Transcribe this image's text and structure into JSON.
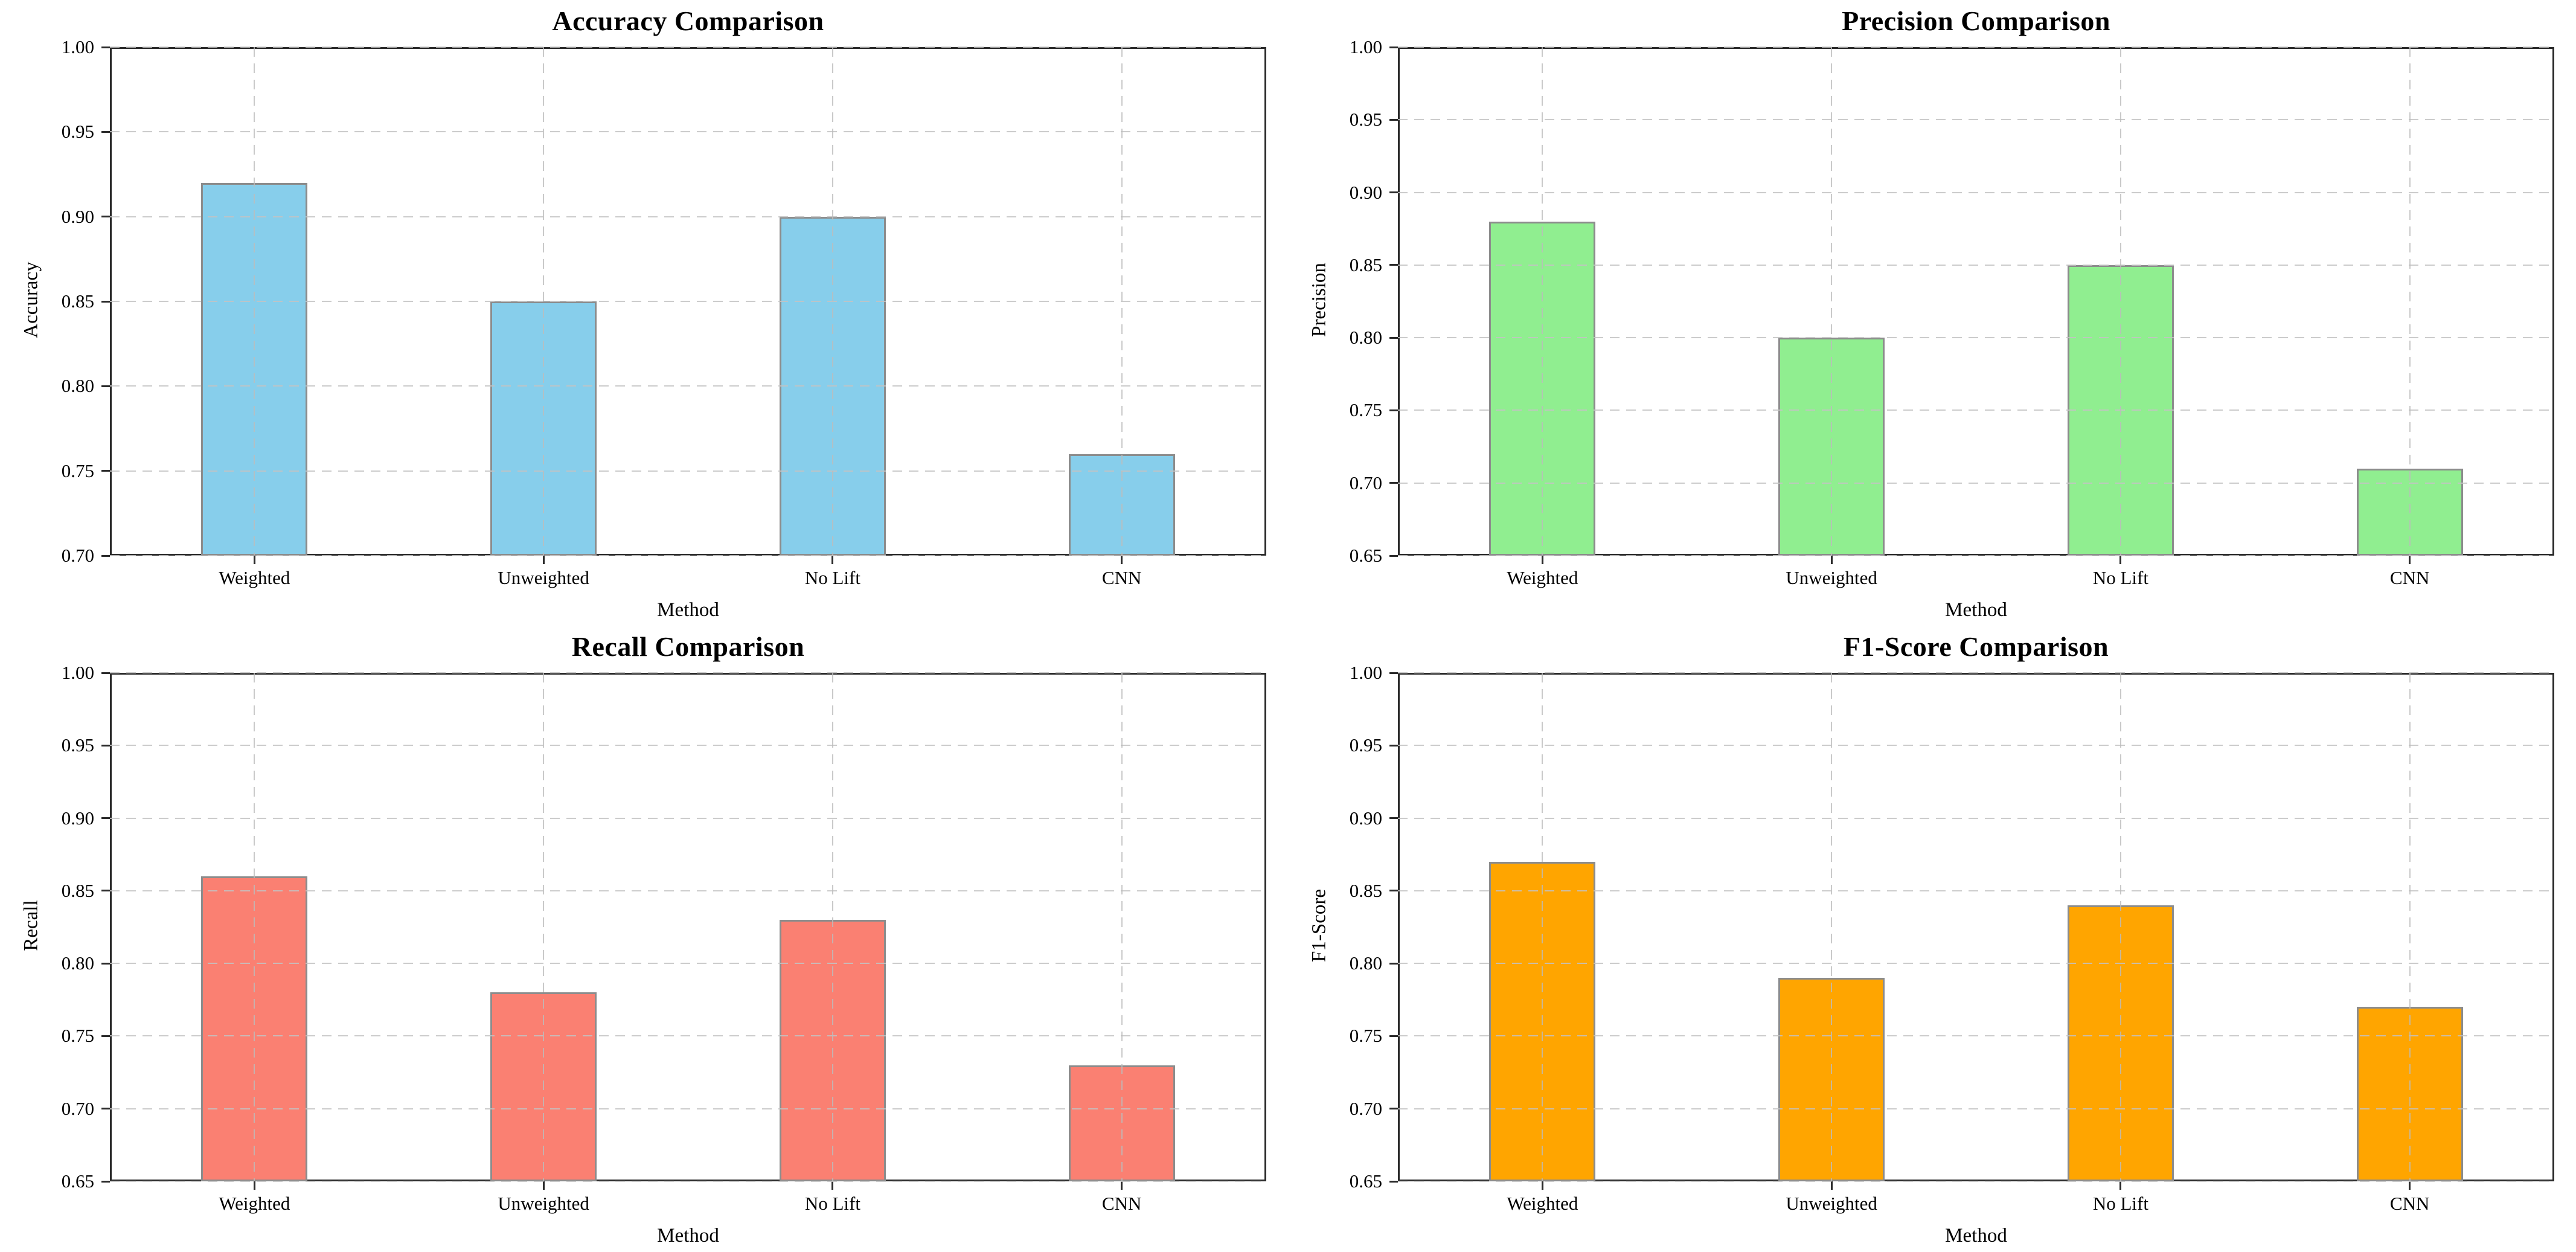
{
  "figure": {
    "background": "#ffffff",
    "grid_style": "dashed",
    "font_color": "#000000",
    "axis_color": "#2b2b2b",
    "bar_edge_color": "#8c8c8c",
    "grid_color": "#c3c3c3"
  },
  "chart_data": [
    {
      "type": "bar",
      "title": "Accuracy Comparison",
      "xlabel": "Method",
      "ylabel": "Accuracy",
      "categories": [
        "Weighted",
        "Unweighted",
        "No Lift",
        "CNN"
      ],
      "values": [
        0.92,
        0.85,
        0.9,
        0.76
      ],
      "ylim": [
        0.7,
        1.0
      ],
      "yticks": [
        0.7,
        0.75,
        0.8,
        0.85,
        0.9,
        0.95,
        1.0
      ],
      "bar_color": "#87CEEB",
      "grid": true,
      "legend": false
    },
    {
      "type": "bar",
      "title": "Precision Comparison",
      "xlabel": "Method",
      "ylabel": "Precision",
      "categories": [
        "Weighted",
        "Unweighted",
        "No Lift",
        "CNN"
      ],
      "values": [
        0.88,
        0.8,
        0.85,
        0.71
      ],
      "ylim": [
        0.65,
        1.0
      ],
      "yticks": [
        0.65,
        0.7,
        0.75,
        0.8,
        0.85,
        0.9,
        0.95,
        1.0
      ],
      "bar_color": "#90EE90",
      "grid": true,
      "legend": false
    },
    {
      "type": "bar",
      "title": "Recall Comparison",
      "xlabel": "Method",
      "ylabel": "Recall",
      "categories": [
        "Weighted",
        "Unweighted",
        "No Lift",
        "CNN"
      ],
      "values": [
        0.86,
        0.78,
        0.83,
        0.73
      ],
      "ylim": [
        0.65,
        1.0
      ],
      "yticks": [
        0.65,
        0.7,
        0.75,
        0.8,
        0.85,
        0.9,
        0.95,
        1.0
      ],
      "bar_color": "#FA8072",
      "grid": true,
      "legend": false
    },
    {
      "type": "bar",
      "title": "F1-Score Comparison",
      "xlabel": "Method",
      "ylabel": "F1-Score",
      "categories": [
        "Weighted",
        "Unweighted",
        "No Lift",
        "CNN"
      ],
      "values": [
        0.87,
        0.79,
        0.84,
        0.77
      ],
      "ylim": [
        0.65,
        1.0
      ],
      "yticks": [
        0.65,
        0.7,
        0.75,
        0.8,
        0.85,
        0.9,
        0.95,
        1.0
      ],
      "bar_color": "#FFA500",
      "grid": true,
      "legend": false
    }
  ]
}
